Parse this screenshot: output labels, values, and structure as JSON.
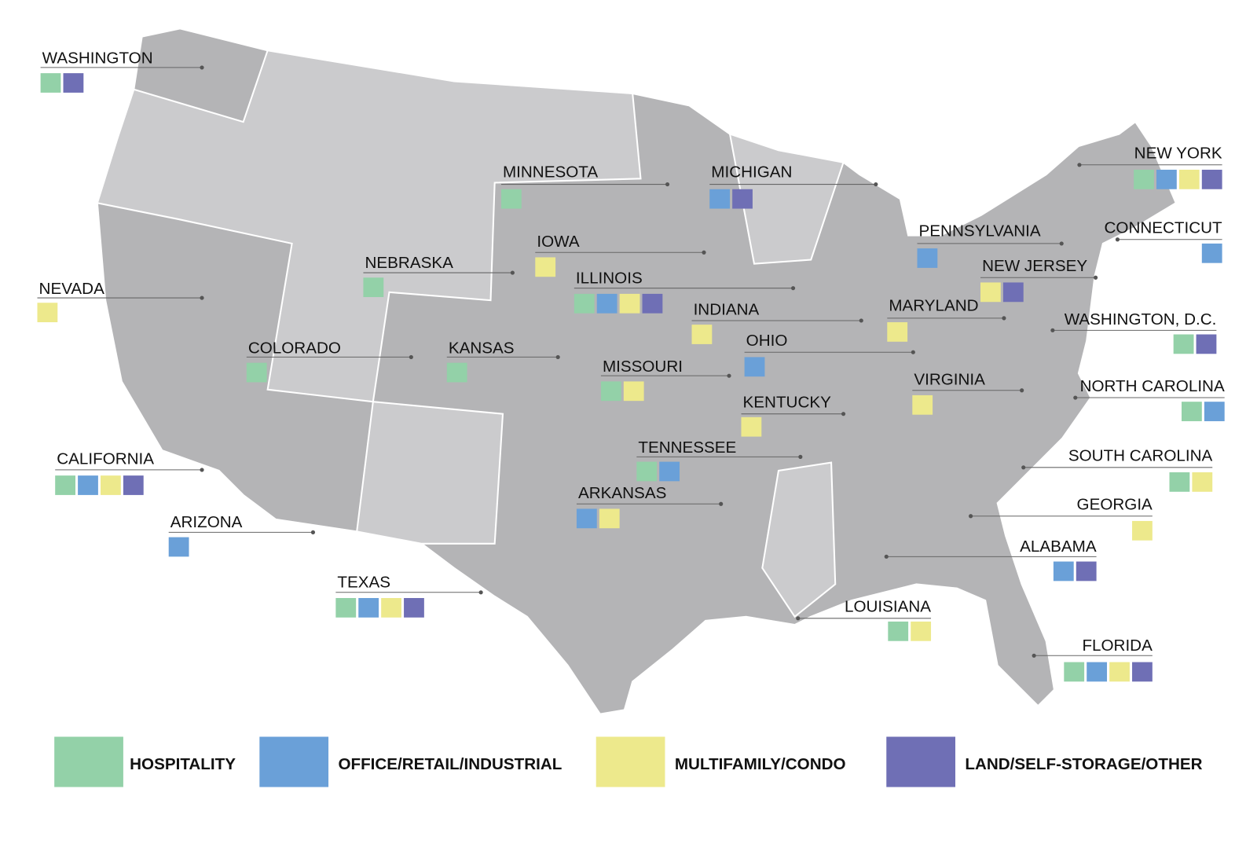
{
  "legend": [
    {
      "label": "HOSPITALITY",
      "color": "#93d1a8"
    },
    {
      "label": "OFFICE/RETAIL/INDUSTRIAL",
      "color": "#6aa0d8"
    },
    {
      "label": "MULTIFAMILY/CONDO",
      "color": "#ede98c"
    },
    {
      "label": "LAND/SELF-STORAGE/OTHER",
      "color": "#6f6fb5"
    }
  ],
  "states": [
    {
      "name": "WASHINGTON",
      "types": [
        0,
        3
      ]
    },
    {
      "name": "MINNESOTA",
      "types": [
        0
      ]
    },
    {
      "name": "MICHIGAN",
      "types": [
        1,
        3
      ]
    },
    {
      "name": "NEW YORK",
      "types": [
        0,
        1,
        2,
        3
      ]
    },
    {
      "name": "IOWA",
      "types": [
        2
      ]
    },
    {
      "name": "NEBRASKA",
      "types": [
        0
      ]
    },
    {
      "name": "PENNSYLVANIA",
      "types": [
        1
      ]
    },
    {
      "name": "CONNECTICUT",
      "types": [
        1
      ]
    },
    {
      "name": "NEVADA",
      "types": [
        2
      ]
    },
    {
      "name": "ILLINOIS",
      "types": [
        0,
        1,
        2,
        3
      ]
    },
    {
      "name": "NEW JERSEY",
      "types": [
        2,
        3
      ]
    },
    {
      "name": "MARYLAND",
      "types": [
        2
      ]
    },
    {
      "name": "INDIANA",
      "types": [
        2
      ]
    },
    {
      "name": "WASHINGTON, D.C.",
      "types": [
        0,
        3
      ]
    },
    {
      "name": "COLORADO",
      "types": [
        0
      ]
    },
    {
      "name": "KANSAS",
      "types": [
        0
      ]
    },
    {
      "name": "OHIO",
      "types": [
        1
      ]
    },
    {
      "name": "MISSOURI",
      "types": [
        0,
        2
      ]
    },
    {
      "name": "VIRGINIA",
      "types": [
        2
      ]
    },
    {
      "name": "NORTH CAROLINA",
      "types": [
        0,
        1
      ]
    },
    {
      "name": "KENTUCKY",
      "types": [
        2
      ]
    },
    {
      "name": "TENNESSEE",
      "types": [
        0,
        1
      ]
    },
    {
      "name": "CALIFORNIA",
      "types": [
        0,
        1,
        2,
        3
      ]
    },
    {
      "name": "SOUTH CAROLINA",
      "types": [
        0,
        2
      ]
    },
    {
      "name": "ARKANSAS",
      "types": [
        1,
        2
      ]
    },
    {
      "name": "GEORGIA",
      "types": [
        2
      ]
    },
    {
      "name": "ARIZONA",
      "types": [
        1
      ]
    },
    {
      "name": "ALABAMA",
      "types": [
        1,
        3
      ]
    },
    {
      "name": "TEXAS",
      "types": [
        0,
        1,
        2,
        3
      ]
    },
    {
      "name": "LOUISIANA",
      "types": [
        0,
        2
      ]
    },
    {
      "name": "FLORIDA",
      "types": [
        0,
        1,
        2,
        3
      ]
    }
  ]
}
